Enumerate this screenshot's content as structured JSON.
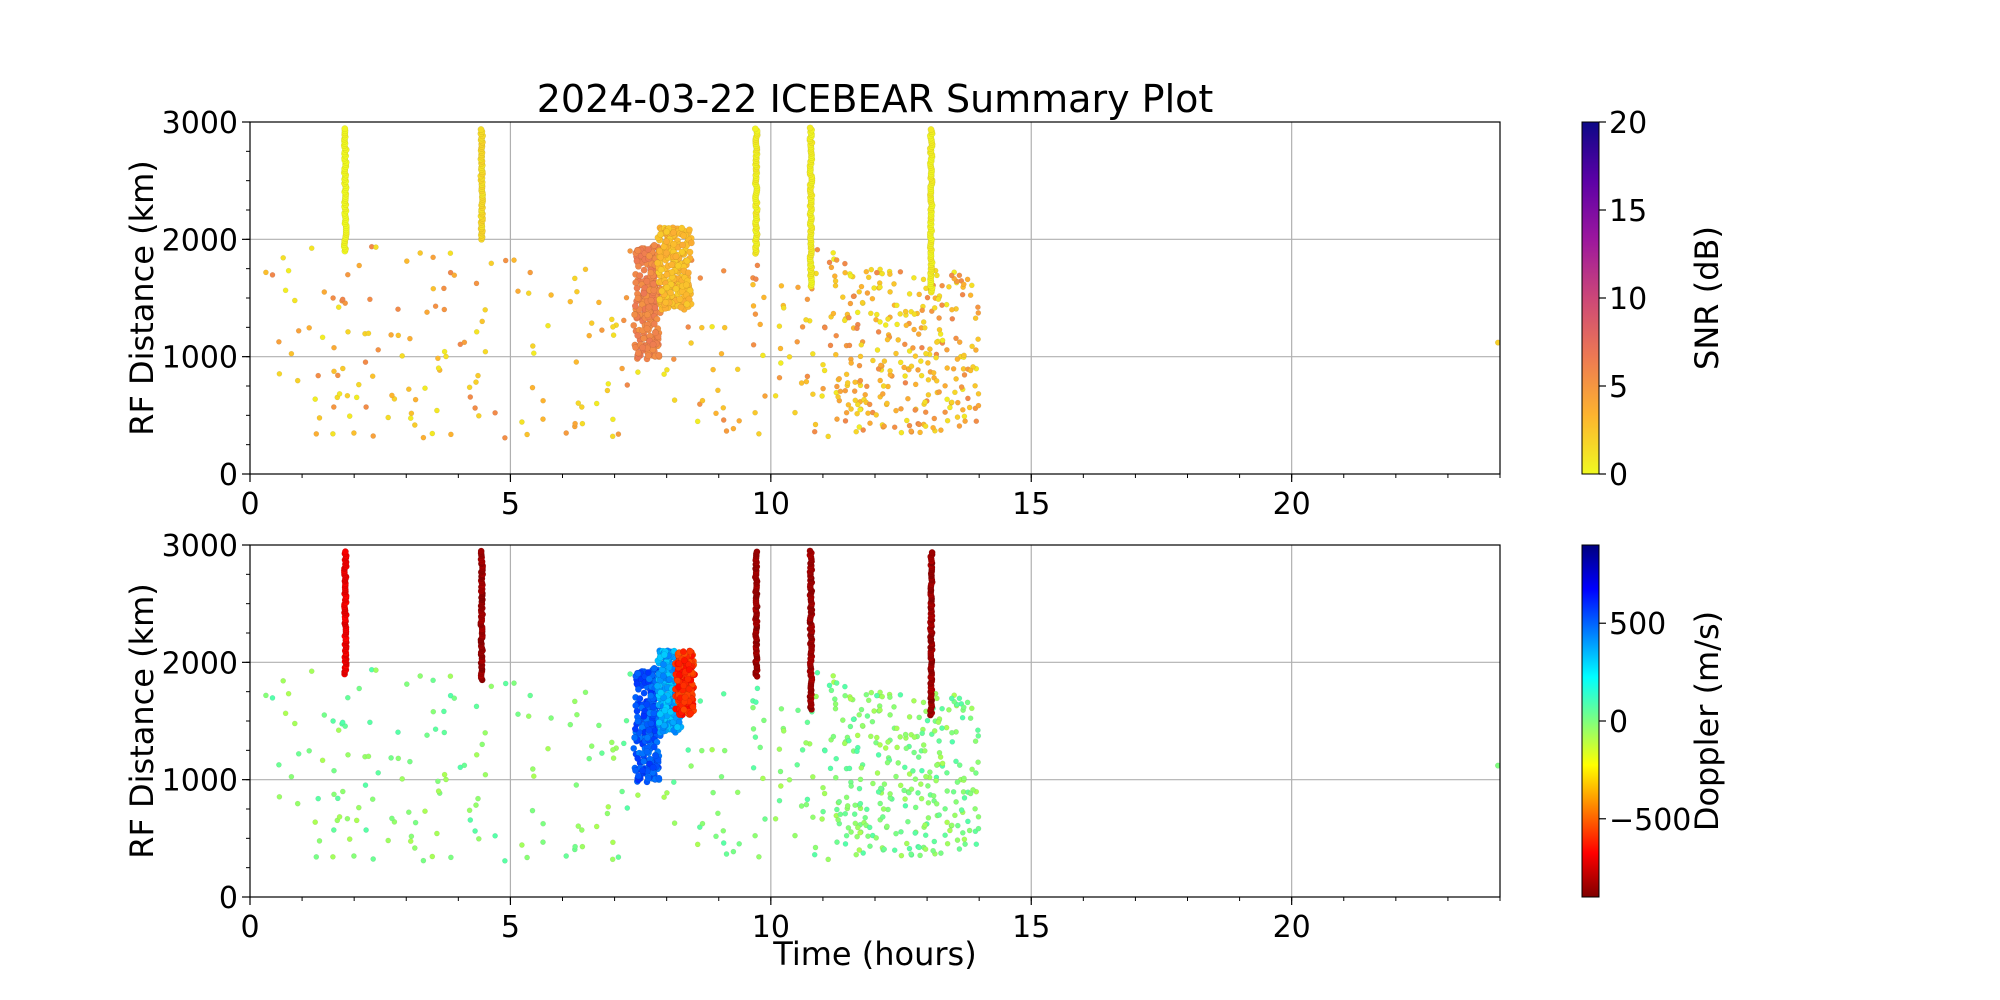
{
  "chart_data": {
    "type": "scatter",
    "title": "2024-03-22 ICEBEAR Summary Plot",
    "panels": [
      {
        "name": "snr",
        "ylabel": "RF Distance (km)",
        "xlabel": "",
        "xlim": [
          0,
          24
        ],
        "ylim": [
          0,
          3000
        ],
        "xticks": [
          0,
          5,
          10,
          15,
          20
        ],
        "yticks": [
          0,
          1000,
          2000,
          3000
        ],
        "grid": true,
        "colorbar": {
          "label": "SNR (dB)",
          "range": [
            0,
            20
          ],
          "ticks": [
            0,
            5,
            10,
            15,
            20
          ],
          "tick_labels": [
            "0",
            "5",
            "10",
            "15",
            "20"
          ],
          "colormap": "plasma_r",
          "colors": [
            "#f0f921",
            "#fdb42f",
            "#ed7953",
            "#cc4778",
            "#9c179e",
            "#5c01a6",
            "#0d0887"
          ]
        },
        "columns": [
          {
            "t": 1.83,
            "y0": 1900,
            "y1": 2950,
            "value": 0
          },
          {
            "t": 4.45,
            "y0": 2000,
            "y1": 2950,
            "value": 1.5
          },
          {
            "t": 9.72,
            "y0": 1880,
            "y1": 2950,
            "value": 0.5
          },
          {
            "t": 10.77,
            "y0": 1600,
            "y1": 2950,
            "value": 0.5
          },
          {
            "t": 13.08,
            "y0": 1550,
            "y1": 2950,
            "value": 0.5
          }
        ],
        "clusters": [
          {
            "t0": 7.4,
            "t1": 7.85,
            "y0": 980,
            "y1": 1950,
            "value": 6
          },
          {
            "t0": 7.85,
            "t1": 8.45,
            "y0": 1400,
            "y1": 2100,
            "value": 3
          }
        ],
        "scatter_region": {
          "t0": 0.3,
          "t1": 14.0,
          "y0": 300,
          "y1": 1950,
          "value_range": [
            0.5,
            6
          ]
        },
        "extra_points": [
          {
            "t": 24.0,
            "y": 1120,
            "value": 2
          }
        ]
      },
      {
        "name": "doppler",
        "ylabel": "RF Distance (km)",
        "xlabel": "Time (hours)",
        "xlim": [
          0,
          24
        ],
        "ylim": [
          0,
          3000
        ],
        "xticks": [
          0,
          5,
          10,
          15,
          20
        ],
        "yticks": [
          0,
          1000,
          2000,
          3000
        ],
        "grid": true,
        "colorbar": {
          "label": "Doppler (m/s)",
          "range": [
            -900,
            900
          ],
          "ticks": [
            -500,
            0,
            500
          ],
          "tick_labels": [
            "−500",
            "0",
            "500"
          ],
          "colormap": "jet_r",
          "colors": [
            "#7f0000",
            "#ff0000",
            "#ff7f00",
            "#ffff00",
            "#7fff7f",
            "#00ffff",
            "#007fff",
            "#0000ff",
            "#00007f"
          ]
        },
        "columns": [
          {
            "t": 1.83,
            "y0": 1900,
            "y1": 2950,
            "value": -700
          },
          {
            "t": 4.45,
            "y0": 1850,
            "y1": 2950,
            "value": -850
          },
          {
            "t": 9.72,
            "y0": 1880,
            "y1": 2950,
            "value": -850
          },
          {
            "t": 10.77,
            "y0": 1600,
            "y1": 2950,
            "value": -850
          },
          {
            "t": 13.08,
            "y0": 1550,
            "y1": 2950,
            "value": -850
          }
        ],
        "clusters": [
          {
            "t0": 7.4,
            "t1": 7.85,
            "y0": 980,
            "y1": 1950,
            "value": 520
          },
          {
            "t0": 7.85,
            "t1": 8.25,
            "y0": 1400,
            "y1": 2100,
            "value": 380
          },
          {
            "t0": 8.2,
            "t1": 8.5,
            "y0": 1550,
            "y1": 2100,
            "value": -600
          }
        ],
        "scatter_region": {
          "t0": 0.3,
          "t1": 14.0,
          "y0": 300,
          "y1": 1950,
          "value_range": [
            -80,
            80
          ]
        },
        "extra_points": [
          {
            "t": 24.0,
            "y": 1120,
            "value": 0
          }
        ]
      }
    ]
  }
}
